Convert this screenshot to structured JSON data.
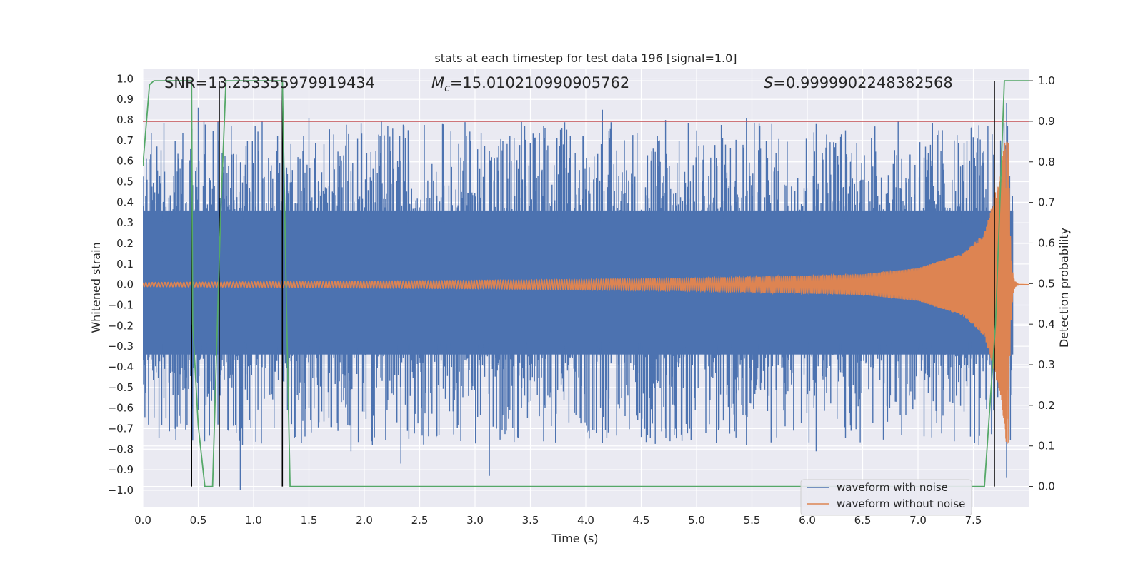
{
  "chart_data": {
    "type": "line",
    "title": "stats at each timestep for test data 196 [signal=1.0]",
    "xlabel": "Time (s)",
    "ylabel": "Whitened strain",
    "ylabel_right": "Detection probability",
    "xlim": [
      0.0,
      8.0
    ],
    "ylim": [
      -1.08,
      1.05
    ],
    "ylim_right": [
      -0.05,
      1.03
    ],
    "x_ticks": [
      "0.0",
      "0.5",
      "1.0",
      "1.5",
      "2.0",
      "2.5",
      "3.0",
      "3.5",
      "4.0",
      "4.5",
      "5.0",
      "5.5",
      "6.0",
      "6.5",
      "7.0",
      "7.5"
    ],
    "y_ticks": [
      "1.0",
      "0.9",
      "0.8",
      "0.7",
      "0.6",
      "0.5",
      "0.4",
      "0.3",
      "0.2",
      "0.1",
      "0.0",
      "-0.1",
      "-0.2",
      "-0.3",
      "-0.4",
      "-0.5",
      "-0.6",
      "-0.7",
      "-0.8",
      "-0.9",
      "-1.0"
    ],
    "y_ticks_right": [
      "1.0",
      "0.9",
      "0.8",
      "0.7",
      "0.6",
      "0.5",
      "0.4",
      "0.3",
      "0.2",
      "0.1",
      "0.0"
    ],
    "grid": true,
    "legend_position": "bottom-right",
    "annotations": {
      "snr": "SNR=13.253355979919434",
      "mc_symbol": "M",
      "mc_sub": "c",
      "mc_value": "=15.010210990905762",
      "s_symbol": "S",
      "s_value": "=0.9999902248382568"
    },
    "series": [
      {
        "name": "waveform with noise",
        "color": "#4c72b0",
        "envelope_points": [
          {
            "x": 0.0,
            "y_max": 0.42,
            "y_min": -0.48
          },
          {
            "x": 0.5,
            "y_max": 0.86,
            "y_min": -0.61
          },
          {
            "x": 0.88,
            "y_max": 0.45,
            "y_min": -1.0
          },
          {
            "x": 1.5,
            "y_max": 0.81,
            "y_min": -0.6
          },
          {
            "x": 1.88,
            "y_max": 0.55,
            "y_min": -0.81
          },
          {
            "x": 2.33,
            "y_max": 0.6,
            "y_min": -0.87
          },
          {
            "x": 3.13,
            "y_max": 0.65,
            "y_min": -0.93
          },
          {
            "x": 3.42,
            "y_max": 0.79,
            "y_min": -0.6
          },
          {
            "x": 4.15,
            "y_max": 0.85,
            "y_min": -0.77
          },
          {
            "x": 4.72,
            "y_max": 0.8,
            "y_min": -0.7
          },
          {
            "x": 5.45,
            "y_max": 0.81,
            "y_min": -0.78
          },
          {
            "x": 6.08,
            "y_max": 0.78,
            "y_min": -0.81
          },
          {
            "x": 7.55,
            "y_max": 0.75,
            "y_min": -0.78
          },
          {
            "x": 7.8,
            "y_max": 0.88,
            "y_min": -0.94
          }
        ]
      },
      {
        "name": "waveform without noise",
        "color": "#dd8452",
        "envelope_points": [
          {
            "x": 0.0,
            "amplitude": 0.01
          },
          {
            "x": 3.0,
            "amplitude": 0.02
          },
          {
            "x": 5.0,
            "amplitude": 0.03
          },
          {
            "x": 6.5,
            "amplitude": 0.05
          },
          {
            "x": 7.0,
            "amplitude": 0.08
          },
          {
            "x": 7.4,
            "amplitude": 0.15
          },
          {
            "x": 7.6,
            "amplitude": 0.25
          },
          {
            "x": 7.75,
            "amplitude": 0.55
          },
          {
            "x": 7.8,
            "amplitude": 0.78
          }
        ],
        "merger_time": 7.82
      },
      {
        "name": "detection probability",
        "color": "#55a868",
        "axis": "right",
        "points": [
          [
            0.0,
            0.79
          ],
          [
            0.06,
            0.99
          ],
          [
            0.1,
            1.0
          ],
          [
            0.44,
            1.0
          ],
          [
            0.45,
            0.4
          ],
          [
            0.5,
            0.15
          ],
          [
            0.56,
            0.0
          ],
          [
            0.63,
            0.0
          ],
          [
            0.7,
            0.65
          ],
          [
            0.75,
            1.0
          ],
          [
            1.26,
            1.0
          ],
          [
            1.3,
            0.4
          ],
          [
            1.33,
            0.0
          ],
          [
            7.6,
            0.0
          ],
          [
            7.7,
            0.4
          ],
          [
            7.78,
            1.0
          ],
          [
            8.0,
            1.0
          ]
        ]
      }
    ],
    "threshold": {
      "axis": "right",
      "value": 0.9,
      "color": "#c44e52"
    },
    "vertical_lines": [
      0.44,
      0.69,
      1.26,
      7.69
    ]
  }
}
